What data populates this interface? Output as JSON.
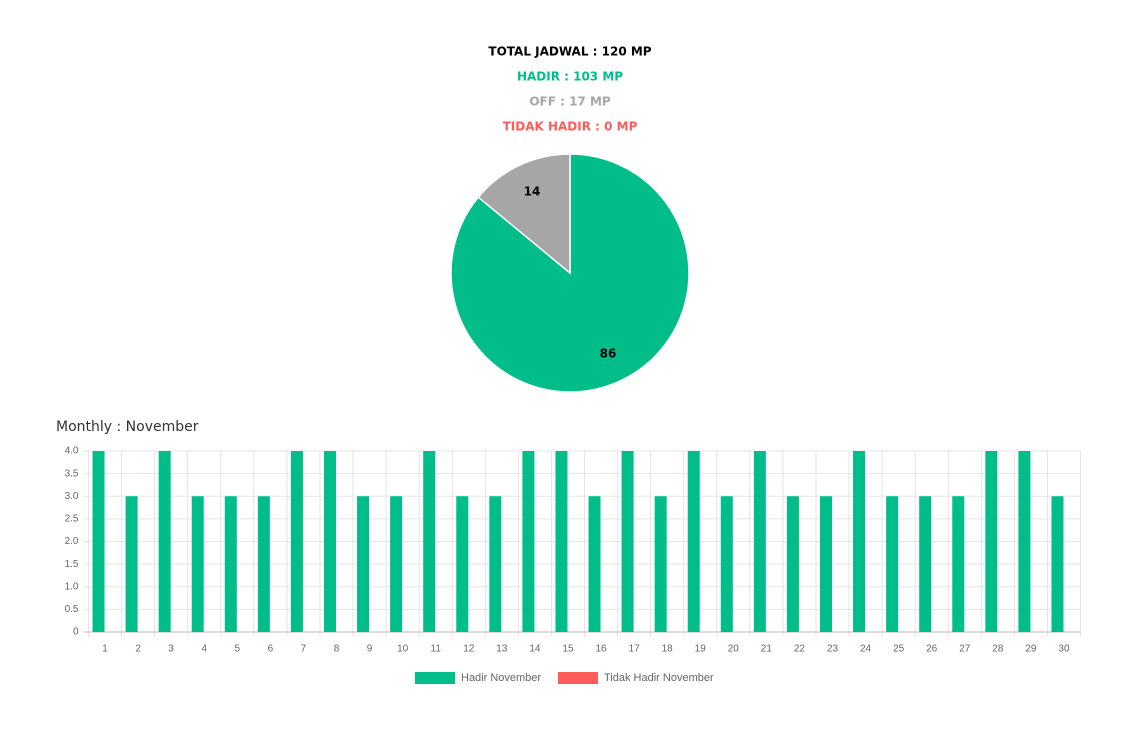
{
  "summary": [
    {
      "text": "TOTAL JADWAL : 120 MP",
      "color": "#000000"
    },
    {
      "text": "HADIR : 103 MP",
      "color": "#00bd8a"
    },
    {
      "text": "OFF : 17 MP",
      "color": "#a6a6a6"
    },
    {
      "text": "TIDAK HADIR : 0 MP",
      "color": "#ff5b5b"
    }
  ],
  "chart_data": [
    {
      "type": "pie",
      "values": [
        86,
        14
      ],
      "colors": [
        "#00bd8a",
        "#a6a6a6"
      ]
    },
    {
      "type": "bar",
      "title": "Monthly : November",
      "categories": [
        "1",
        "2",
        "3",
        "4",
        "5",
        "6",
        "7",
        "8",
        "9",
        "10",
        "11",
        "12",
        "13",
        "14",
        "15",
        "16",
        "17",
        "18",
        "19",
        "20",
        "21",
        "22",
        "23",
        "24",
        "25",
        "26",
        "27",
        "28",
        "29",
        "30"
      ],
      "series": [
        {
          "name": "Hadir November",
          "color": "#00bd8a",
          "values": [
            4,
            3,
            4,
            3,
            3,
            3,
            4,
            4,
            3,
            3,
            4,
            3,
            3,
            4,
            4,
            3,
            4,
            3,
            4,
            3,
            4,
            3,
            3,
            4,
            3,
            3,
            3,
            4,
            4,
            3
          ]
        },
        {
          "name": "Tidak Hadir November",
          "color": "#ff5b5b",
          "values": [
            0,
            0,
            0,
            0,
            0,
            0,
            0,
            0,
            0,
            0,
            0,
            0,
            0,
            0,
            0,
            0,
            0,
            0,
            0,
            0,
            0,
            0,
            0,
            0,
            0,
            0,
            0,
            0,
            0,
            0
          ]
        }
      ],
      "ylim": [
        0,
        4
      ],
      "yticks": [
        0,
        0.5,
        {
          "value": 1,
          "label": "1.0"
        },
        1.5,
        {
          "value": 2,
          "label": "2.0"
        },
        2.5,
        {
          "value": 3,
          "label": "3.0"
        },
        3.5,
        {
          "value": 4,
          "label": "4.0"
        }
      ],
      "grid": true,
      "legend": "bottom"
    }
  ]
}
